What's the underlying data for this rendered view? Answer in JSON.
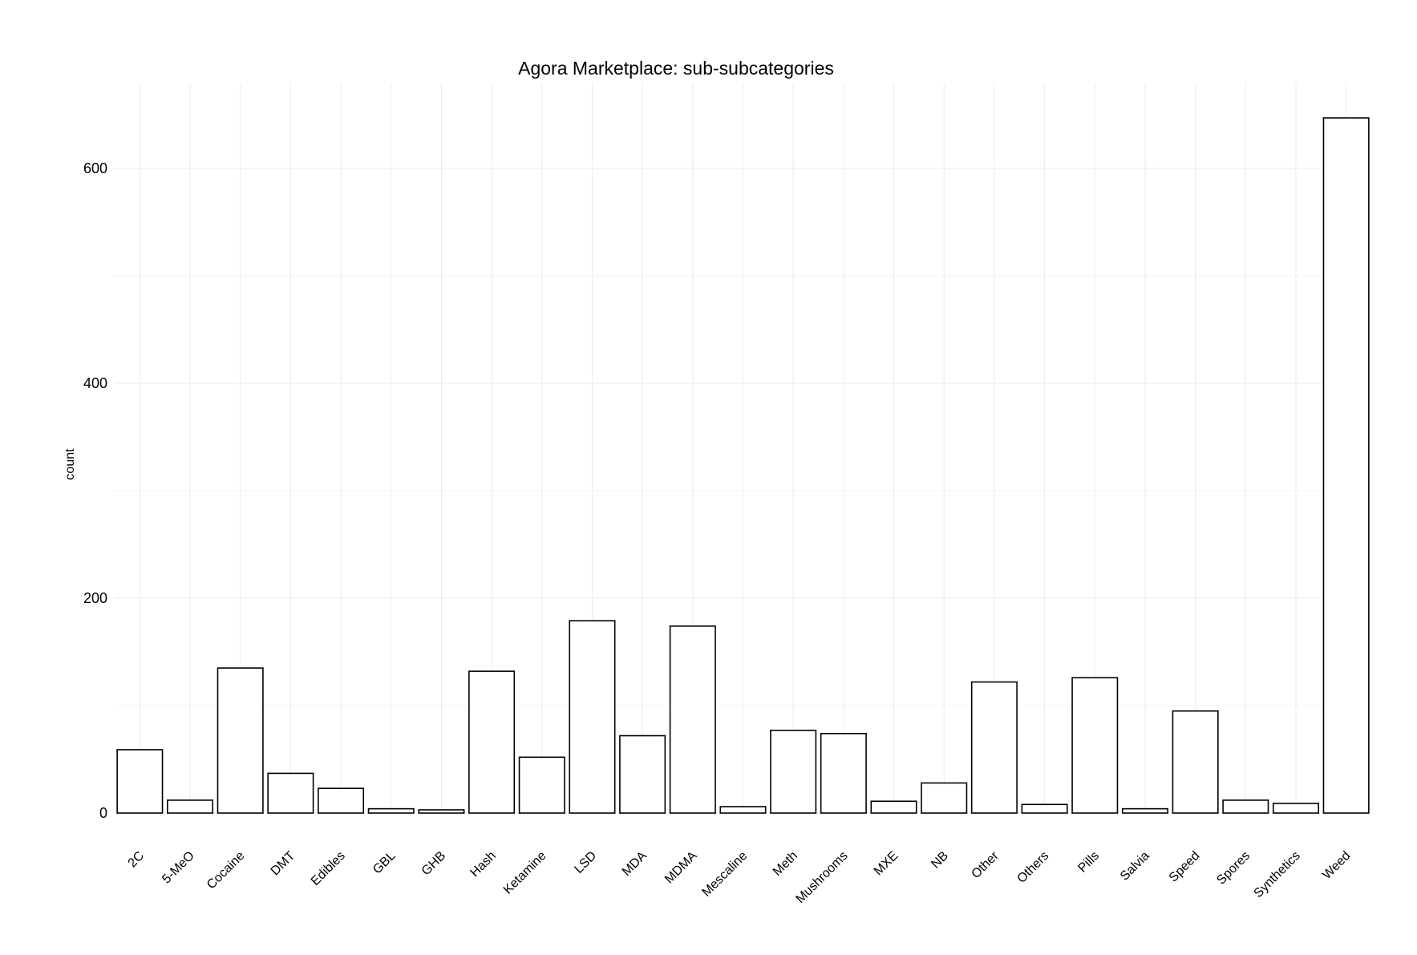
{
  "chart_data": {
    "type": "bar",
    "title": "Agora Marketplace: sub-subcategories",
    "xlabel": "",
    "ylabel": "count",
    "categories": [
      "2C",
      "5-MeO",
      "Cocaine",
      "DMT",
      "Edibles",
      "GBL",
      "GHB",
      "Hash",
      "Ketamine",
      "LSD",
      "MDA",
      "MDMA",
      "Mescaline",
      "Meth",
      "Mushrooms",
      "MXE",
      "NB",
      "Other",
      "Others",
      "Pills",
      "Salvia",
      "Speed",
      "Spores",
      "Synthetics",
      "Weed"
    ],
    "values": [
      59,
      12,
      135,
      37,
      23,
      4,
      3,
      132,
      52,
      179,
      72,
      174,
      6,
      77,
      74,
      11,
      28,
      122,
      8,
      126,
      4,
      95,
      12,
      9,
      647
    ],
    "yticks": [
      0,
      200,
      400,
      600
    ],
    "ylim": [
      0,
      680
    ],
    "grid": true,
    "legend": "none",
    "colors": {
      "bar_fill": "#ffffff",
      "bar_stroke": "#000000",
      "grid": "#ebebeb"
    }
  }
}
